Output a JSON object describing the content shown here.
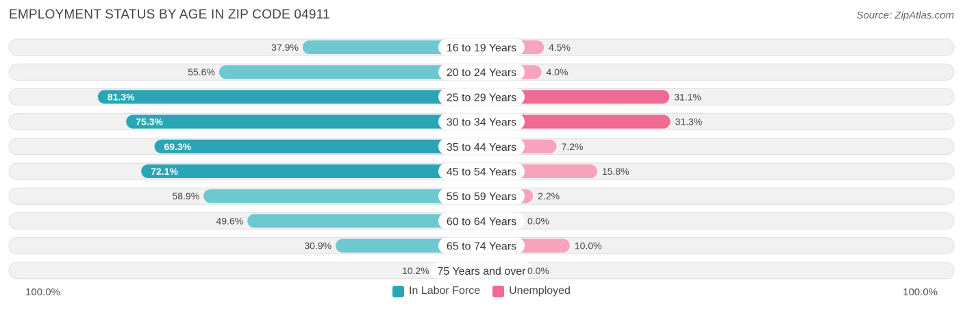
{
  "title": "EMPLOYMENT STATUS BY AGE IN ZIP CODE 04911",
  "source": "Source: ZipAtlas.com",
  "colors": {
    "labor_dark": "#2aa5b5",
    "labor_light": "#6ec8d0",
    "unemp_dark": "#f06a93",
    "unemp_light": "#f7a3bd",
    "row_bg": "#f1f1f1",
    "row_border": "#dddddd"
  },
  "axis": {
    "left_label": "100.0%",
    "right_label": "100.0%"
  },
  "chart_data": {
    "type": "bar",
    "orientation": "horizontal-diverging",
    "title": "EMPLOYMENT STATUS BY AGE IN ZIP CODE 04911",
    "categories": [
      "16 to 19 Years",
      "20 to 24 Years",
      "25 to 29 Years",
      "30 to 34 Years",
      "35 to 44 Years",
      "45 to 54 Years",
      "55 to 59 Years",
      "60 to 64 Years",
      "65 to 74 Years",
      "75 Years and over"
    ],
    "series": [
      {
        "name": "In Labor Force",
        "values": [
          37.9,
          55.6,
          81.3,
          75.3,
          69.3,
          72.1,
          58.9,
          49.6,
          30.9,
          10.2
        ],
        "labels": [
          "37.9%",
          "55.6%",
          "81.3%",
          "75.3%",
          "69.3%",
          "72.1%",
          "58.9%",
          "49.6%",
          "30.9%",
          "10.2%"
        ]
      },
      {
        "name": "Unemployed",
        "values": [
          4.5,
          4.0,
          31.1,
          31.3,
          7.2,
          15.8,
          2.2,
          0.0,
          10.0,
          0.0
        ],
        "labels": [
          "4.5%",
          "4.0%",
          "31.1%",
          "31.3%",
          "7.2%",
          "15.8%",
          "2.2%",
          "0.0%",
          "10.0%",
          "0.0%"
        ]
      }
    ],
    "xlim": [
      0,
      100
    ],
    "legend": [
      "In Labor Force",
      "Unemployed"
    ]
  }
}
